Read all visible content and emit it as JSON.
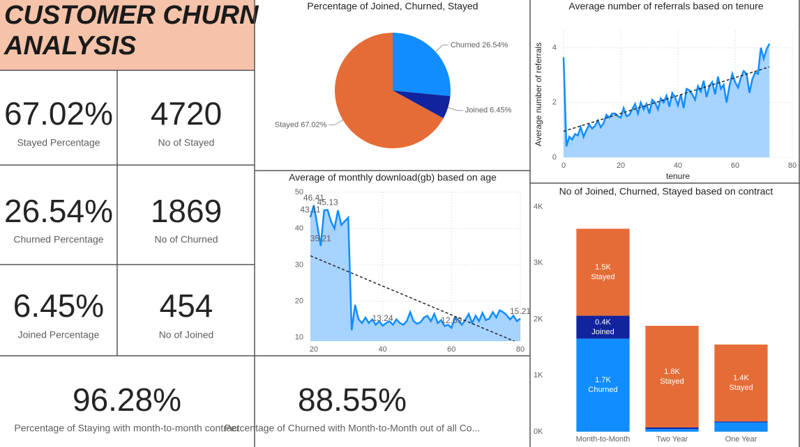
{
  "header": {
    "title_lines": [
      "CUSTOMER CHURN",
      "ANALYSIS"
    ]
  },
  "kpis": [
    {
      "value": "67.02%",
      "label": "Stayed Percentage"
    },
    {
      "value": "4720",
      "label": "No of Stayed"
    },
    {
      "value": "26.54%",
      "label": "Churned Percentage"
    },
    {
      "value": "1869",
      "label": "No of Churned"
    },
    {
      "value": "6.45%",
      "label": "Joined Percentage"
    },
    {
      "value": "454",
      "label": "No of Joined"
    },
    {
      "value": "96.28%",
      "label": "Percentage of Staying with month-to-month contract"
    },
    {
      "value": "88.55%",
      "label": "Percentage of Churned with Month-to-Month out of all Co..."
    }
  ],
  "chart_data": [
    {
      "type": "pie",
      "title": "Percentage of Joined, Churned, Stayed",
      "categories": [
        "Churned",
        "Joined",
        "Stayed"
      ],
      "values": [
        26.54,
        6.45,
        67.02
      ],
      "value_labels": [
        "26.54%",
        "6.45%",
        "67.02%"
      ],
      "colors": [
        "#118DFF",
        "#12239E",
        "#E66C37"
      ]
    },
    {
      "type": "line",
      "title": "Average of monthly download(gb) based on age",
      "x": [
        19,
        20,
        21,
        22,
        23,
        24,
        25,
        26,
        27,
        28,
        29,
        30,
        31,
        32,
        33,
        34,
        35,
        36,
        37,
        38,
        39,
        40,
        41,
        42,
        43,
        44,
        45,
        46,
        47,
        48,
        49,
        50,
        51,
        52,
        53,
        54,
        55,
        56,
        57,
        58,
        59,
        60,
        61,
        62,
        63,
        64,
        65,
        66,
        67,
        68,
        69,
        70,
        71,
        72,
        73,
        74,
        75,
        76,
        77,
        78,
        79,
        80
      ],
      "values": [
        43.11,
        46.41,
        41,
        35.21,
        45,
        45.13,
        42,
        40,
        45,
        41,
        42,
        43,
        12,
        19,
        15,
        14,
        15.5,
        14,
        15,
        13.5,
        14.5,
        13.24,
        14,
        14.5,
        13.5,
        15,
        14,
        13.5,
        14.5,
        17,
        14.5,
        13.8,
        14.2,
        15.5,
        16,
        14.5,
        16.5,
        14,
        14.8,
        13.2,
        13.5,
        12.69,
        15.5,
        14.8,
        13.5,
        14.8,
        16.5,
        14,
        16,
        14.5,
        16.8,
        14.8,
        15.2,
        17,
        15.5,
        17.5,
        17,
        16.2,
        15,
        16,
        14.5,
        15.21
      ],
      "value_labels": [
        "43.11",
        "46.41",
        null,
        "35.21",
        null,
        "45.13",
        null,
        null,
        null,
        null,
        null,
        null,
        null,
        null,
        null,
        null,
        null,
        null,
        null,
        null,
        null,
        "13.24",
        null,
        null,
        null,
        null,
        null,
        null,
        null,
        null,
        null,
        null,
        null,
        null,
        null,
        null,
        null,
        null,
        null,
        null,
        null,
        "12.69",
        null,
        null,
        null,
        null,
        null,
        null,
        null,
        null,
        null,
        null,
        null,
        null,
        null,
        null,
        null,
        null,
        null,
        null,
        null,
        "15.21"
      ],
      "trend_line": [
        32.5,
        8.3
      ],
      "color": "#118DFF",
      "area_color": "#A6D3FF",
      "xlim": [
        19,
        80
      ],
      "xticks": [
        20,
        40,
        60,
        80
      ],
      "ylim": [
        9,
        50
      ],
      "yticks": [
        10,
        20,
        30,
        40,
        50
      ],
      "grid": true
    },
    {
      "type": "line",
      "title": "Average number of referrals based on tenure",
      "x_label": "tenure",
      "y_label": "Average number of referrals",
      "x": [
        0,
        1,
        2,
        3,
        4,
        5,
        6,
        7,
        8,
        9,
        10,
        11,
        12,
        13,
        14,
        15,
        16,
        17,
        18,
        19,
        20,
        21,
        22,
        23,
        24,
        25,
        26,
        27,
        28,
        29,
        30,
        31,
        32,
        33,
        34,
        35,
        36,
        37,
        38,
        39,
        40,
        41,
        42,
        43,
        44,
        45,
        46,
        47,
        48,
        49,
        50,
        51,
        52,
        53,
        54,
        55,
        56,
        57,
        58,
        59,
        60,
        61,
        62,
        63,
        64,
        65,
        66,
        67,
        68,
        69,
        70,
        71,
        72
      ],
      "values": [
        3.65,
        0.4,
        0.75,
        0.65,
        0.85,
        0.8,
        1.1,
        0.75,
        1.0,
        1.2,
        1.05,
        1.15,
        1.35,
        1.1,
        1.25,
        1.55,
        1.45,
        1.6,
        1.6,
        1.5,
        1.45,
        1.8,
        1.5,
        1.55,
        1.75,
        1.95,
        1.6,
        2.0,
        1.75,
        1.95,
        1.6,
        2.1,
        2.0,
        1.75,
        2.15,
        2.0,
        2.25,
        1.85,
        2.35,
        2.2,
        1.9,
        2.3,
        1.8,
        2.5,
        2.45,
        2.3,
        2.1,
        2.6,
        2.4,
        2.8,
        2.2,
        2.6,
        2.75,
        2.3,
        2.95,
        2.5,
        2.65,
        2.0,
        2.6,
        3.05,
        2.75,
        2.55,
        2.9,
        3.15,
        3.05,
        2.35,
        2.85,
        3.1,
        3.05,
        4.0,
        3.6,
        3.95,
        4.15
      ],
      "trend_line": [
        0.95,
        3.3
      ],
      "color": "#118DFF",
      "area_color": "#A6D3FF",
      "xlim": [
        0,
        80
      ],
      "xticks": [
        0,
        20,
        40,
        60,
        80
      ],
      "ylim": [
        0,
        4.6
      ],
      "yticks": [
        0,
        2,
        4
      ],
      "grid": true
    },
    {
      "type": "bar",
      "stacked": true,
      "title": "No of Joined, Churned, Stayed based on contract",
      "categories": [
        "Month-to-Month",
        "Two Year",
        "One Year"
      ],
      "series": [
        {
          "name": "Churned",
          "color": "#118DFF",
          "values": [
            1655,
            48,
            166
          ],
          "value_labels": [
            "1.7K",
            null,
            null
          ]
        },
        {
          "name": "Joined",
          "color": "#12239E",
          "values": [
            408,
            29,
            17
          ],
          "value_labels": [
            "0.4K",
            null,
            null
          ]
        },
        {
          "name": "Stayed",
          "color": "#E66C37",
          "values": [
            1547,
            1806,
            1367
          ],
          "value_labels": [
            "1.5K",
            "1.8K",
            "1.4K"
          ]
        }
      ],
      "ylim": [
        0,
        4000
      ],
      "yticks": [
        {
          "value": 0,
          "label": "0K"
        },
        {
          "value": 1000,
          "label": "1K"
        },
        {
          "value": 2000,
          "label": "2K"
        },
        {
          "value": 3000,
          "label": "3K"
        },
        {
          "value": 4000,
          "label": "4K"
        }
      ],
      "grid": false
    }
  ]
}
